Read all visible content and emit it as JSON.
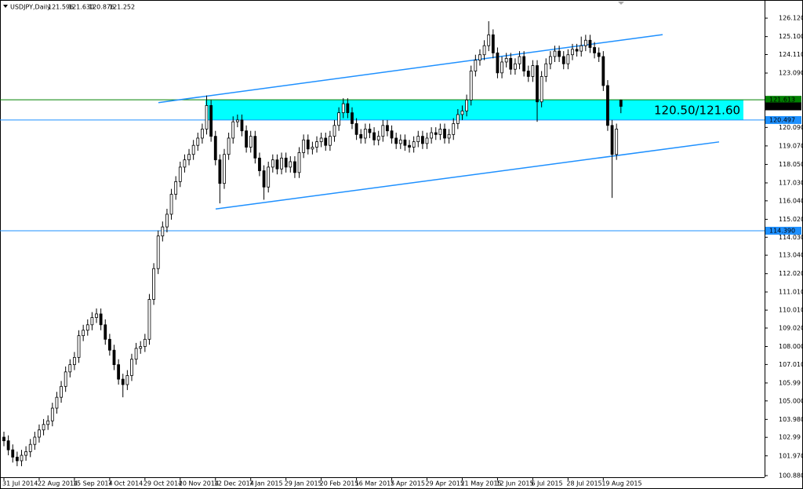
{
  "chart_data": {
    "type": "candlestick",
    "title": "USDJPY,Daily",
    "ohlc_labels": [
      "121.596",
      "121.630",
      "120.876",
      "121.252"
    ],
    "categories": [
      "31 Jul 2014",
      null,
      null,
      null,
      null,
      null,
      null,
      null,
      "22 Aug 2014",
      null,
      null,
      null,
      null,
      null,
      null,
      null,
      "15 Sep 2014",
      null,
      null,
      null,
      null,
      null,
      null,
      null,
      "7 Oct 2014",
      null,
      null,
      null,
      null,
      null,
      null,
      null,
      "29 Oct 2014",
      null,
      null,
      null,
      null,
      null,
      null,
      null,
      "20 Nov 2014",
      null,
      null,
      null,
      null,
      null,
      null,
      null,
      "12 Dec 2014",
      null,
      null,
      null,
      null,
      null,
      null,
      null,
      "7 Jan 2015",
      null,
      null,
      null,
      null,
      null,
      null,
      null,
      "29 Jan 2015",
      null,
      null,
      null,
      null,
      null,
      null,
      null,
      "20 Feb 2015",
      null,
      null,
      null,
      null,
      null,
      null,
      null,
      "16 Mar 2015",
      null,
      null,
      null,
      null,
      null,
      null,
      null,
      "7 Apr 2015",
      null,
      null,
      null,
      null,
      null,
      null,
      null,
      "29 Apr 2015",
      null,
      null,
      null,
      null,
      null,
      null,
      null,
      "21 May 2015",
      null,
      null,
      null,
      null,
      null,
      null,
      null,
      "12 Jun 2015",
      null,
      null,
      null,
      null,
      null,
      null,
      null,
      "6 Jul 2015",
      null,
      null,
      null,
      null,
      null,
      null,
      null,
      "28 Jul 2015",
      null,
      null,
      null,
      null,
      null,
      null,
      null,
      "19 Aug 2015",
      null,
      null,
      null,
      null
    ],
    "open": [
      103.0,
      102.8,
      102.3,
      101.9,
      101.7,
      102.0,
      102.2,
      102.6,
      103.0,
      103.4,
      103.7,
      103.9,
      104.6,
      105.2,
      105.8,
      106.6,
      107.0,
      107.4,
      108.6,
      108.9,
      109.2,
      109.6,
      109.8,
      109.2,
      108.4,
      107.8,
      107.0,
      106.2,
      105.9,
      106.4,
      107.3,
      107.9,
      108.0,
      108.4,
      110.6,
      112.3,
      114.1,
      114.6,
      115.3,
      116.4,
      117.1,
      117.9,
      118.3,
      118.6,
      119.1,
      119.5,
      120.0,
      121.3,
      119.6,
      118.3,
      117.0,
      118.6,
      119.5,
      120.4,
      120.5,
      119.9,
      119.0,
      119.6,
      118.4,
      117.7,
      116.8,
      117.9,
      118.3,
      117.8,
      118.4,
      117.9,
      118.2,
      117.6,
      118.7,
      119.4,
      118.9,
      119.0,
      119.3,
      119.5,
      119.1,
      119.6,
      120.2,
      120.9,
      121.4,
      120.9,
      120.3,
      119.7,
      119.5,
      120.0,
      119.8,
      119.4,
      119.6,
      120.2,
      119.9,
      119.5,
      119.2,
      119.4,
      119.1,
      119.0,
      119.3,
      119.6,
      119.2,
      119.5,
      119.8,
      119.7,
      120.0,
      119.5,
      119.7,
      120.3,
      120.8,
      121.0,
      121.6,
      123.2,
      123.8,
      124.1,
      124.6,
      125.2,
      124.2,
      123.1,
      123.7,
      123.9,
      123.3,
      123.6,
      124.0,
      123.2,
      122.9,
      123.5,
      121.5,
      122.9,
      123.6,
      124.0,
      124.3,
      124.0,
      123.6,
      124.1,
      124.4,
      124.3,
      124.6,
      124.9,
      124.5,
      124.2,
      124.0,
      122.4,
      120.2,
      118.6,
      121.596
    ],
    "high": [
      103.3,
      103.1,
      102.6,
      102.2,
      102.3,
      102.5,
      102.9,
      103.3,
      103.7,
      104.0,
      104.2,
      104.9,
      105.5,
      106.1,
      106.9,
      107.3,
      107.7,
      108.9,
      109.2,
      109.5,
      109.9,
      110.1,
      110.1,
      109.5,
      108.7,
      108.1,
      107.3,
      106.5,
      106.7,
      107.6,
      108.2,
      108.3,
      108.7,
      110.9,
      112.6,
      114.4,
      114.9,
      115.6,
      116.7,
      117.4,
      118.2,
      118.6,
      118.9,
      119.4,
      119.8,
      120.3,
      121.85,
      121.6,
      119.9,
      118.6,
      118.9,
      119.8,
      120.7,
      120.8,
      120.8,
      120.2,
      119.9,
      119.9,
      118.7,
      118.0,
      118.2,
      118.6,
      118.6,
      118.7,
      118.7,
      118.5,
      118.5,
      119.0,
      119.7,
      119.7,
      119.3,
      119.6,
      119.8,
      119.8,
      119.9,
      120.5,
      121.2,
      121.7,
      121.7,
      121.2,
      120.6,
      120.0,
      120.3,
      120.3,
      120.1,
      119.9,
      120.5,
      120.5,
      120.2,
      119.8,
      119.7,
      119.7,
      119.4,
      119.6,
      119.9,
      119.9,
      119.8,
      120.1,
      120.1,
      120.3,
      120.3,
      120.0,
      120.6,
      121.1,
      121.3,
      121.9,
      123.5,
      124.1,
      124.4,
      124.9,
      125.95,
      125.5,
      124.5,
      124.0,
      124.2,
      124.2,
      123.9,
      124.3,
      124.3,
      123.5,
      123.8,
      123.8,
      123.2,
      123.9,
      124.3,
      124.6,
      124.6,
      124.3,
      124.4,
      124.7,
      124.7,
      125.1,
      125.2,
      125.2,
      124.8,
      124.5,
      124.3,
      122.7,
      120.5,
      120.3,
      121.63
    ],
    "low": [
      102.5,
      102.0,
      101.6,
      101.4,
      101.4,
      101.7,
      101.9,
      102.3,
      102.7,
      103.1,
      103.4,
      103.6,
      104.3,
      104.9,
      105.5,
      106.3,
      106.7,
      107.1,
      108.3,
      108.6,
      108.9,
      109.3,
      108.9,
      108.1,
      107.5,
      106.7,
      105.9,
      105.2,
      105.6,
      106.1,
      107.0,
      107.6,
      107.7,
      108.1,
      110.3,
      112.0,
      113.8,
      114.3,
      115.0,
      116.1,
      116.8,
      117.6,
      118.0,
      118.3,
      118.8,
      119.2,
      119.7,
      119.3,
      118.0,
      115.9,
      116.7,
      118.3,
      119.2,
      120.1,
      119.6,
      118.7,
      118.7,
      118.1,
      117.4,
      116.1,
      116.5,
      117.6,
      117.5,
      117.5,
      117.6,
      117.6,
      117.3,
      117.3,
      118.4,
      118.6,
      118.6,
      118.7,
      119.0,
      118.8,
      118.8,
      119.3,
      119.9,
      120.6,
      120.6,
      120.0,
      119.4,
      119.2,
      119.2,
      119.5,
      119.1,
      119.1,
      119.3,
      119.6,
      119.2,
      118.9,
      118.9,
      118.8,
      118.7,
      118.7,
      119.0,
      118.9,
      118.9,
      119.2,
      119.4,
      119.4,
      119.2,
      119.2,
      119.4,
      120.0,
      120.5,
      120.7,
      121.3,
      122.9,
      123.5,
      123.8,
      124.3,
      123.9,
      122.8,
      122.8,
      123.4,
      123.0,
      123.0,
      123.3,
      122.9,
      122.6,
      122.6,
      120.4,
      121.2,
      122.6,
      123.3,
      123.7,
      123.7,
      123.3,
      123.3,
      123.8,
      124.0,
      124.0,
      124.3,
      124.2,
      123.9,
      123.7,
      122.1,
      119.9,
      116.2,
      118.3,
      120.876
    ],
    "close": [
      102.8,
      102.3,
      101.9,
      101.7,
      102.0,
      102.2,
      102.6,
      103.0,
      103.4,
      103.7,
      103.9,
      104.6,
      105.2,
      105.8,
      106.6,
      107.0,
      107.4,
      108.6,
      108.9,
      109.2,
      109.6,
      109.8,
      109.2,
      108.4,
      107.8,
      107.0,
      106.2,
      105.9,
      106.4,
      107.3,
      107.9,
      108.0,
      108.4,
      110.6,
      112.3,
      114.1,
      114.6,
      115.3,
      116.4,
      117.1,
      117.9,
      118.3,
      118.6,
      119.1,
      119.5,
      120.0,
      121.3,
      119.6,
      118.3,
      117.0,
      118.6,
      119.5,
      120.4,
      120.5,
      119.9,
      119.0,
      119.6,
      118.4,
      117.7,
      116.8,
      117.9,
      118.3,
      117.8,
      118.4,
      117.9,
      118.2,
      117.6,
      118.7,
      119.4,
      118.9,
      119.0,
      119.3,
      119.5,
      119.1,
      119.6,
      120.2,
      120.9,
      121.4,
      120.9,
      120.3,
      119.7,
      119.5,
      120.0,
      119.8,
      119.4,
      119.6,
      120.2,
      119.9,
      119.5,
      119.2,
      119.4,
      119.1,
      119.0,
      119.3,
      119.6,
      119.2,
      119.5,
      119.8,
      119.7,
      120.0,
      119.5,
      119.7,
      120.3,
      120.8,
      121.0,
      121.6,
      123.2,
      123.8,
      124.1,
      124.6,
      125.2,
      124.2,
      123.1,
      123.7,
      123.9,
      123.3,
      123.6,
      124.0,
      123.2,
      122.9,
      123.5,
      121.5,
      122.9,
      123.6,
      124.0,
      124.3,
      124.0,
      123.6,
      124.1,
      124.4,
      124.3,
      124.6,
      124.9,
      124.5,
      124.2,
      124.0,
      122.4,
      120.2,
      118.6,
      120.0,
      121.252
    ],
    "candle_color": "#000000",
    "up_fill": "#ffffff",
    "down_fill": "#000000",
    "ylim": [
      100.79,
      127.12
    ],
    "yticks": [
      {
        "value": 126.12,
        "label": "126.120"
      },
      {
        "value": 125.1,
        "label": "125.100"
      },
      {
        "value": 124.11,
        "label": "124.110"
      },
      {
        "value": 123.09,
        "label": "123.090"
      },
      {
        "value": 120.09,
        "label": "120.090"
      },
      {
        "value": 119.07,
        "label": "119.070"
      },
      {
        "value": 118.05,
        "label": "118.050"
      },
      {
        "value": 117.03,
        "label": "117.030"
      },
      {
        "value": 116.04,
        "label": "116.040"
      },
      {
        "value": 115.02,
        "label": "115.020"
      },
      {
        "value": 114.03,
        "label": "114.030"
      },
      {
        "value": 113.04,
        "label": "113.040"
      },
      {
        "value": 112.02,
        "label": "112.020"
      },
      {
        "value": 111.01,
        "label": "111.010"
      },
      {
        "value": 110.01,
        "label": "110.010"
      },
      {
        "value": 109.02,
        "label": "109.020"
      },
      {
        "value": 108,
        "label": "108.000"
      },
      {
        "value": 107.01,
        "label": "107.010"
      },
      105.99,
      {
        "value": 105,
        "label": "105.000"
      },
      {
        "value": 103.98,
        "label": "103.980"
      },
      102.99,
      {
        "value": 101.97,
        "label": "101.970"
      },
      {
        "value": 100.88,
        "label": "100.880"
      }
    ],
    "levels": [
      {
        "value": 121.613,
        "label": "121.613",
        "color": "#008000"
      },
      {
        "value": 120.497,
        "label": "120.497",
        "color": "#1e90ff"
      },
      {
        "value": 114.39,
        "label": "114.390",
        "color": "#1e90ff"
      }
    ],
    "last_price_color": "#000000",
    "zone": {
      "low": 120.5,
      "high": 121.6,
      "label": "120.50/121.60",
      "color": "#00ffff"
    },
    "trendlines": [
      {
        "start": 121.46,
        "end": 125.21,
        "color": "#1e90ff"
      },
      {
        "start": 115.59,
        "end": 119.29,
        "color": "#1e90ff"
      }
    ]
  }
}
